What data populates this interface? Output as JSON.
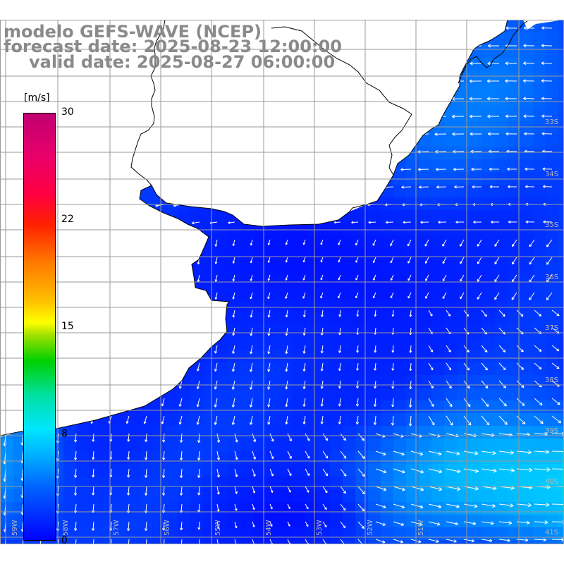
{
  "title": {
    "line1": "modelo GEFS-WAVE (NCEP)",
    "line2": "forecast date: 2025-08-23 12:00:00",
    "line3": "valid date: 2025-08-27 06:00:00"
  },
  "colorbar": {
    "unit": "[m/s]",
    "ticks": [
      "30",
      "22",
      "15",
      "8",
      "0"
    ],
    "range": [
      0,
      30
    ],
    "colors": [
      "#0000ff",
      "#00b0ff",
      "#00e6ff",
      "#00d000",
      "#ffff00",
      "#ff7a00",
      "#ff2000",
      "#c00070"
    ]
  },
  "map": {
    "lat_labels": [
      "33S",
      "34S",
      "35S",
      "36S",
      "37S",
      "38S",
      "39S",
      "40S",
      "41S"
    ],
    "lon_labels": [
      "59W",
      "58W",
      "57W",
      "56W",
      "55W",
      "54W",
      "53W",
      "52W",
      "51W"
    ],
    "field": "wind speed and direction",
    "ocean_colors": {
      "low": "#0000ff",
      "mid": "#1a6cff",
      "high": "#00e6ff"
    },
    "coast_color": "#000000",
    "grid_color": "#9a9a9a",
    "arrow_color": "#ffffff"
  }
}
